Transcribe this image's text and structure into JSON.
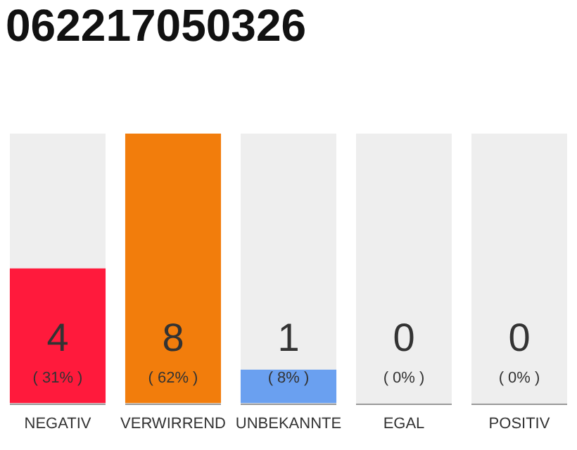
{
  "chart_data": {
    "type": "bar",
    "title": "062217050326",
    "categories": [
      "NEGATIV",
      "VERWIRREND",
      "UNBEKANNTE",
      "EGAL",
      "POSITIV"
    ],
    "values": [
      4,
      8,
      1,
      0,
      0
    ],
    "colors": [
      "#ff1a3c",
      "#f27d0c",
      "#6aa0f0",
      "#cccccc",
      "#cccccc"
    ],
    "data_labels": true,
    "grid": false,
    "legend": false,
    "annotations": [
      "( 31% )",
      "( 62% )",
      "( 8% )",
      "( 0% )",
      "( 0% )"
    ]
  }
}
